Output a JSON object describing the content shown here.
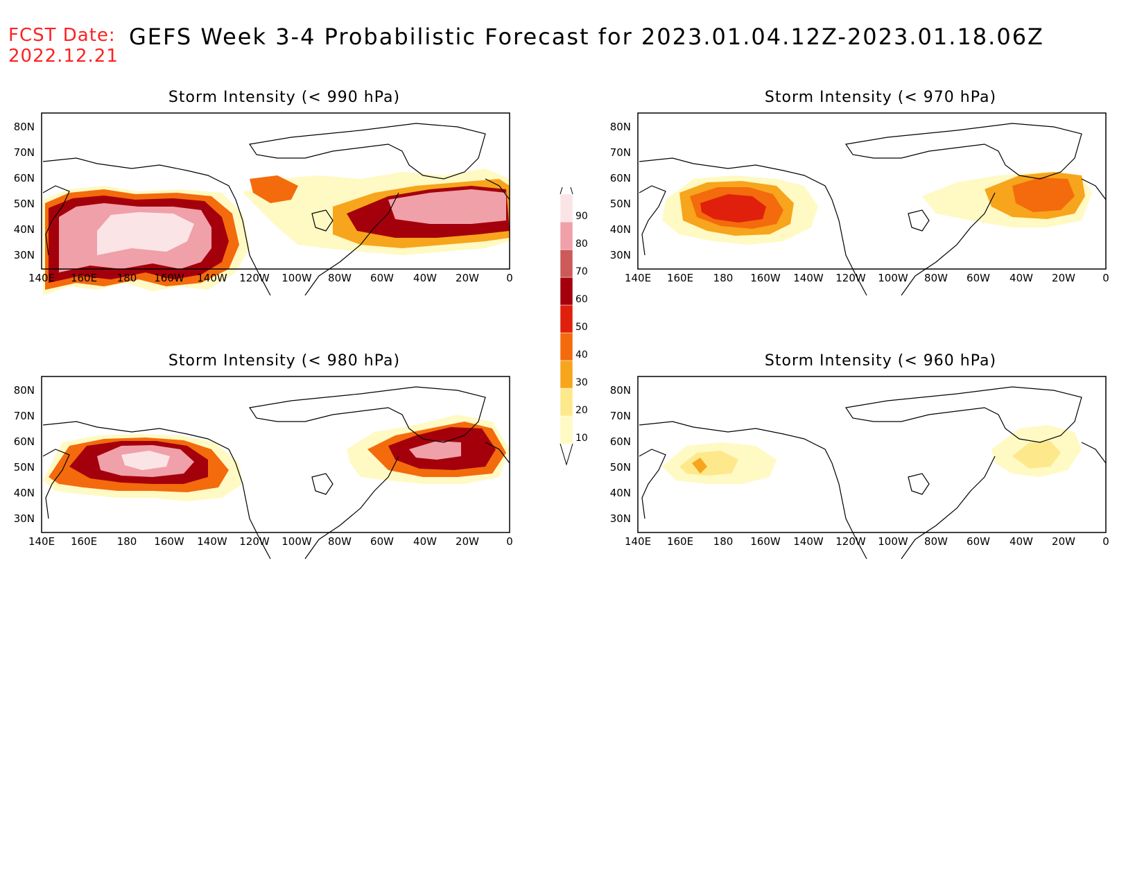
{
  "header": {
    "fcst_label": "FCST Date:",
    "fcst_date": "2022.12.21",
    "title": "GEFS Week 3-4 Probabilistic Forecast for 2023.01.04.12Z-2023.01.18.06Z"
  },
  "map": {
    "lon_labels": [
      "140E",
      "160E",
      "180",
      "160W",
      "140W",
      "120W",
      "100W",
      "80W",
      "60W",
      "40W",
      "20W",
      "0"
    ],
    "lat_labels": [
      "80N",
      "70N",
      "60N",
      "50N",
      "40N",
      "30N"
    ]
  },
  "panels": [
    {
      "id": "p990",
      "title": "Storm Intensity (< 990 hPa)"
    },
    {
      "id": "p970",
      "title": "Storm Intensity (< 970 hPa)"
    },
    {
      "id": "p980",
      "title": "Storm Intensity (< 980 hPa)"
    },
    {
      "id": "p960",
      "title": "Storm Intensity (< 960 hPa)"
    }
  ],
  "colorbar": {
    "levels": [
      "10",
      "20",
      "30",
      "40",
      "50",
      "60",
      "70",
      "80",
      "90"
    ],
    "colors": [
      "#fff9c4",
      "#fde98c",
      "#f7a51c",
      "#f36b0c",
      "#e0200c",
      "#a4000c",
      "#cc5a5a",
      "#f0a0a8",
      "#fbe4e6"
    ]
  }
}
